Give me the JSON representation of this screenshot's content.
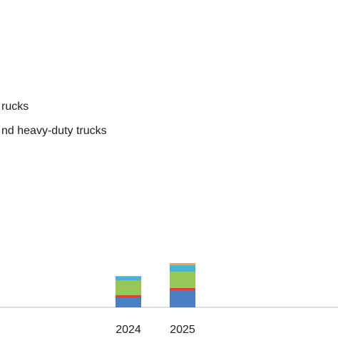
{
  "chart_data": {
    "type": "bar",
    "stacked": true,
    "categories": [
      "2024",
      "2025"
    ],
    "series": [
      {
        "name": "rucks",
        "color": "#4a7fc4",
        "values": [
          14,
          24
        ]
      },
      {
        "name": "nd heavy-duty trucks",
        "color": "#d9423a",
        "values": [
          3,
          3
        ]
      },
      {
        "color": "#98c659",
        "values": [
          21,
          23
        ]
      },
      {
        "color": "#4bb3d0",
        "values": [
          5,
          9
        ]
      },
      {
        "color": "#f5a145",
        "values": [
          1,
          3
        ]
      }
    ],
    "ylim": [
      0,
      431
    ]
  }
}
